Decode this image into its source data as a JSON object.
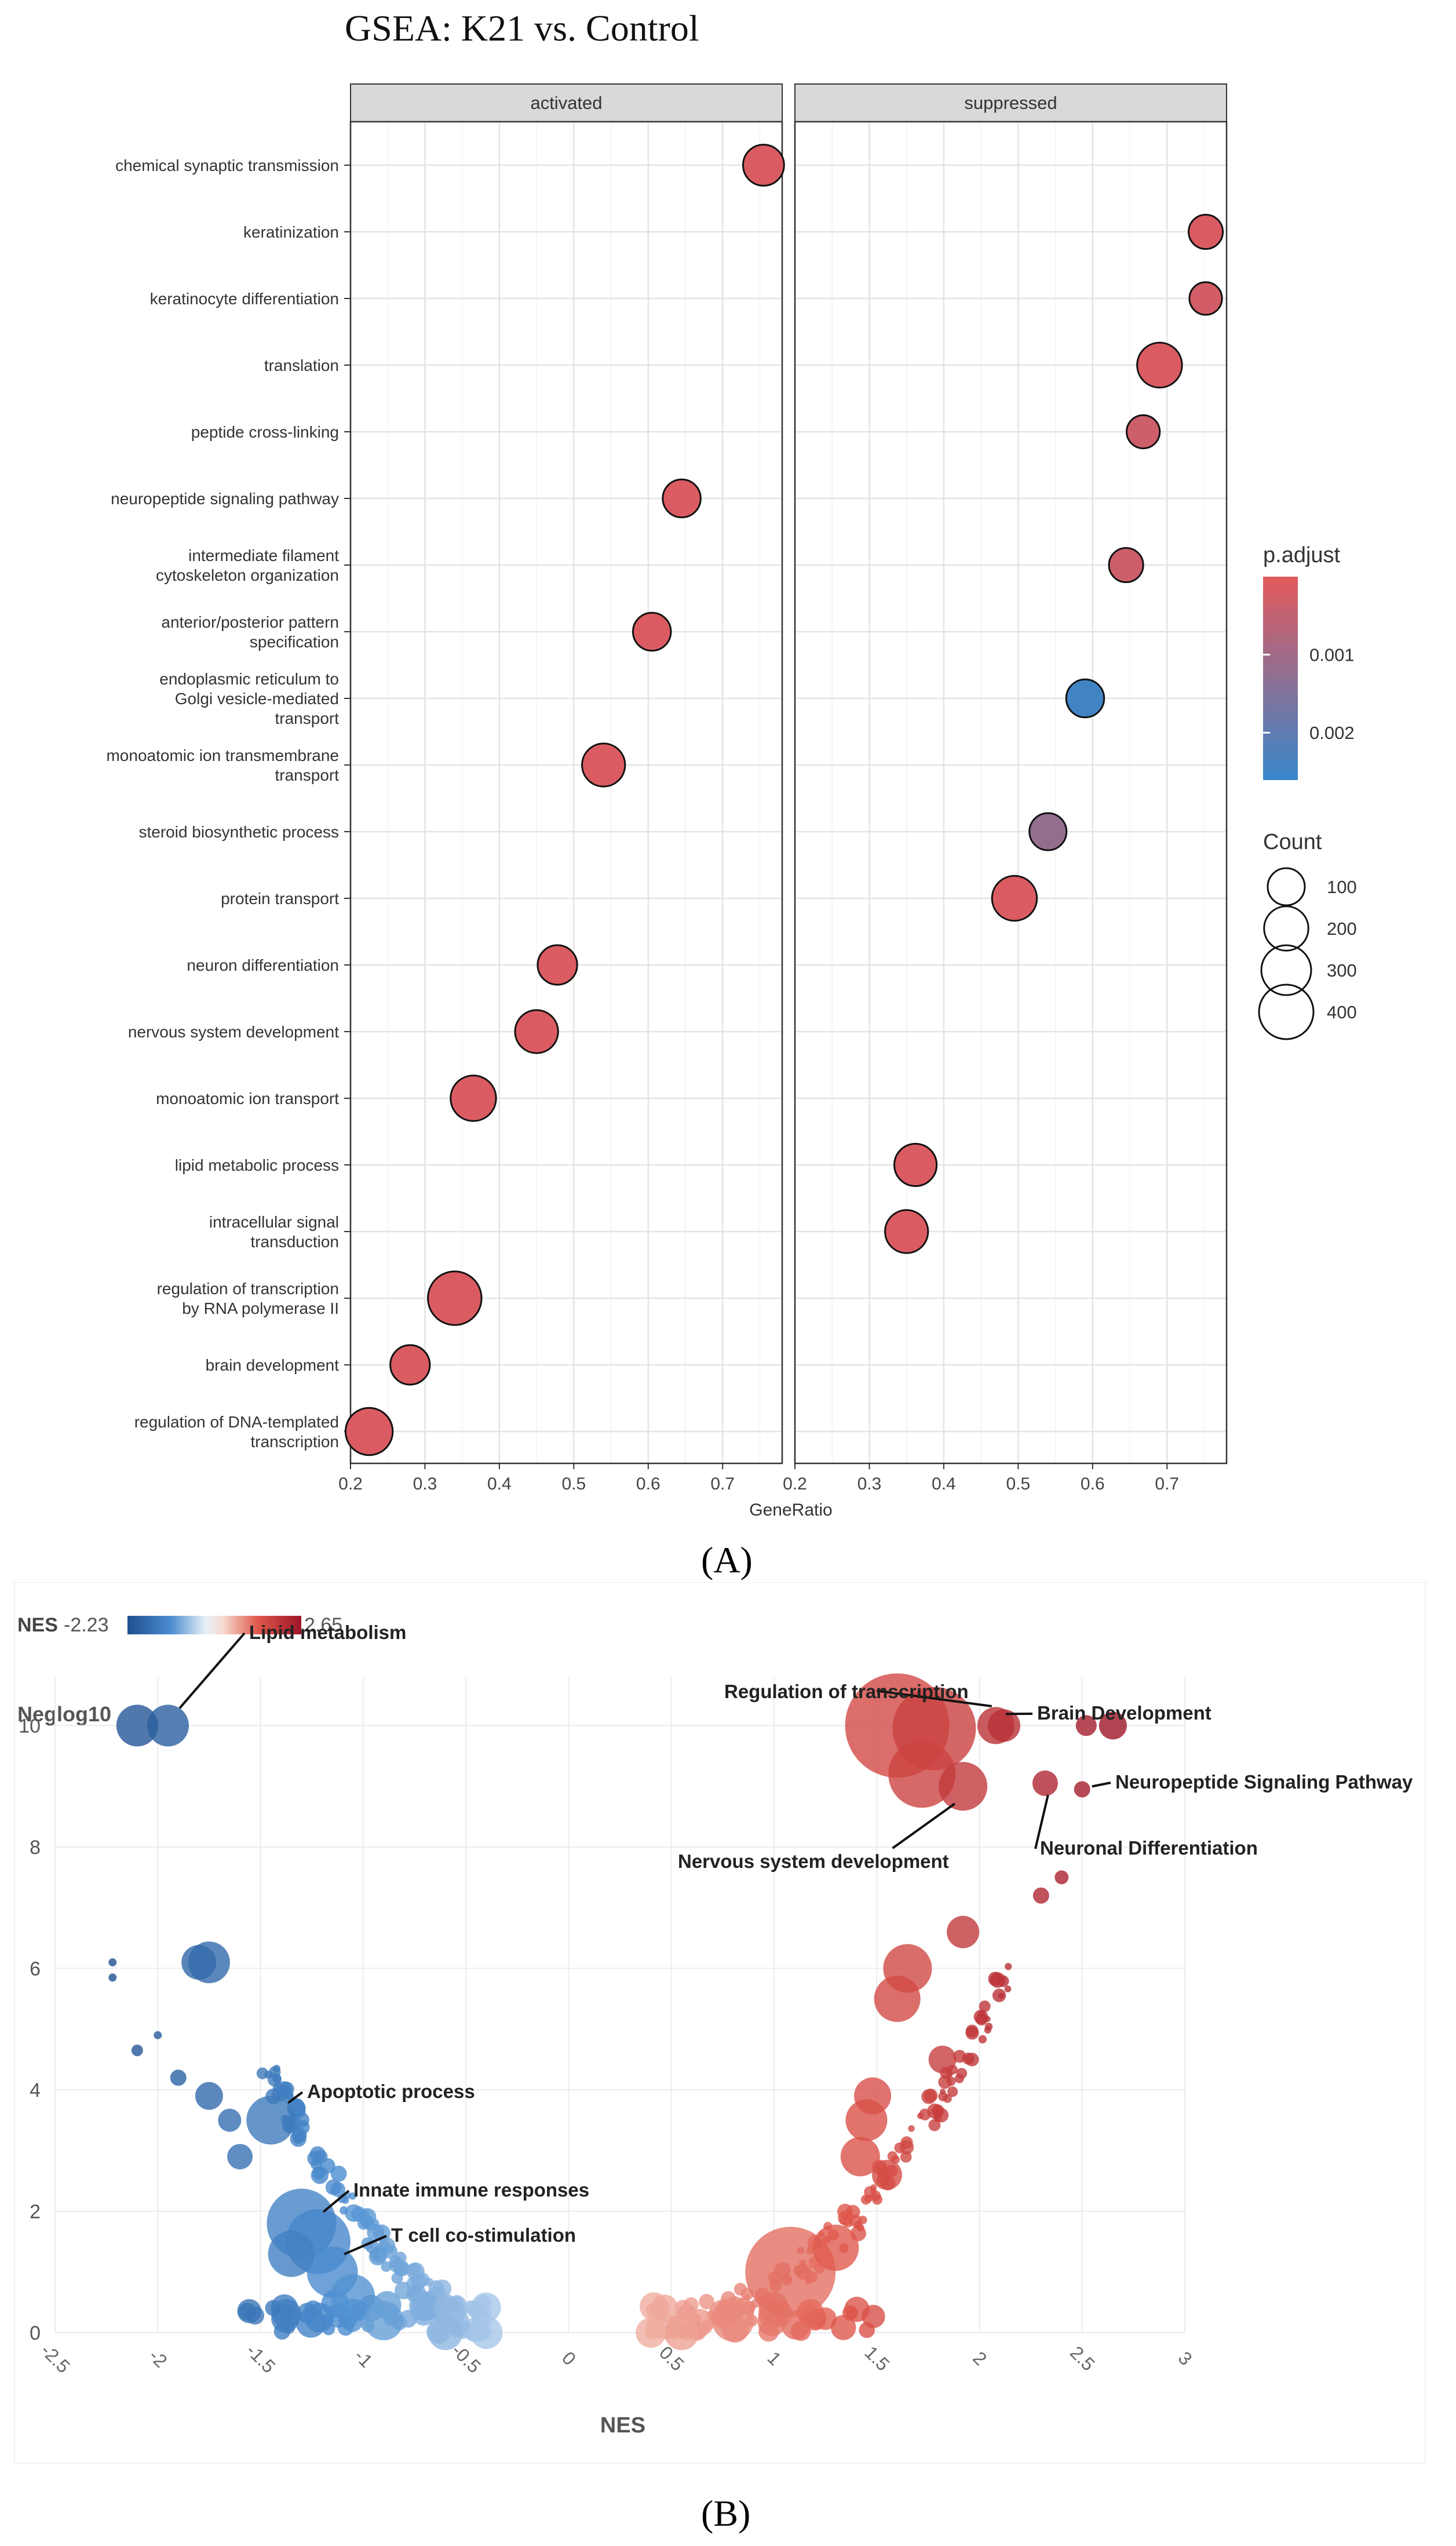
{
  "chart_data": [
    {
      "type": "scatter",
      "title": "GSEA: K21 vs. Control",
      "xlabel": "GeneRatio",
      "xlim": [
        0.2,
        0.78
      ],
      "xticks": [
        "0.2",
        "0.3",
        "0.4",
        "0.5",
        "0.6",
        "0.7"
      ],
      "facets": [
        "activated",
        "suppressed"
      ],
      "categories": [
        "chemical synaptic transmission",
        "keratinization",
        "keratinocyte differentiation",
        "translation",
        "peptide cross-linking",
        "neuropeptide signaling pathway",
        "intermediate filament\ncytoskeleton organization",
        "anterior/posterior pattern\nspecification",
        "endoplasmic reticulum to\nGolgi vesicle-mediated\ntransport",
        "monoatomic ion transmembrane\ntransport",
        "steroid biosynthetic process",
        "protein transport",
        "neuron differentiation",
        "nervous system development",
        "monoatomic ion transport",
        "lipid metabolic process",
        "intracellular signal\ntransduction",
        "regulation of transcription\nby RNA polymerase II",
        "brain development",
        "regulation of DNA-templated\ntranscription"
      ],
      "points": [
        {
          "term": 0,
          "facet": "activated",
          "x": 0.755,
          "count": 150,
          "p_adjust": 0.0001
        },
        {
          "term": 5,
          "facet": "activated",
          "x": 0.645,
          "count": 110,
          "p_adjust": 0.0001
        },
        {
          "term": 7,
          "facet": "activated",
          "x": 0.605,
          "count": 110,
          "p_adjust": 0.0001
        },
        {
          "term": 9,
          "facet": "activated",
          "x": 0.54,
          "count": 180,
          "p_adjust": 0.0001
        },
        {
          "term": 12,
          "facet": "activated",
          "x": 0.478,
          "count": 130,
          "p_adjust": 0.0001
        },
        {
          "term": 13,
          "facet": "activated",
          "x": 0.45,
          "count": 180,
          "p_adjust": 0.0001
        },
        {
          "term": 14,
          "facet": "activated",
          "x": 0.365,
          "count": 220,
          "p_adjust": 0.0001
        },
        {
          "term": 17,
          "facet": "activated",
          "x": 0.34,
          "count": 380,
          "p_adjust": 0.0001
        },
        {
          "term": 18,
          "facet": "activated",
          "x": 0.28,
          "count": 130,
          "p_adjust": 0.0001
        },
        {
          "term": 19,
          "facet": "activated",
          "x": 0.225,
          "count": 250,
          "p_adjust": 0.0001
        },
        {
          "term": 1,
          "facet": "suppressed",
          "x": 0.752,
          "count": 70,
          "p_adjust": 0.0001
        },
        {
          "term": 2,
          "facet": "suppressed",
          "x": 0.752,
          "count": 55,
          "p_adjust": 0.0002
        },
        {
          "term": 3,
          "facet": "suppressed",
          "x": 0.69,
          "count": 210,
          "p_adjust": 0.0001
        },
        {
          "term": 4,
          "facet": "suppressed",
          "x": 0.668,
          "count": 60,
          "p_adjust": 0.0003
        },
        {
          "term": 6,
          "facet": "suppressed",
          "x": 0.645,
          "count": 70,
          "p_adjust": 0.0003
        },
        {
          "term": 8,
          "facet": "suppressed",
          "x": 0.59,
          "count": 110,
          "p_adjust": 0.0025
        },
        {
          "term": 10,
          "facet": "suppressed",
          "x": 0.54,
          "count": 100,
          "p_adjust": 0.0012
        },
        {
          "term": 11,
          "facet": "suppressed",
          "x": 0.495,
          "count": 210,
          "p_adjust": 0.0001
        },
        {
          "term": 15,
          "facet": "suppressed",
          "x": 0.362,
          "count": 170,
          "p_adjust": 0.0001
        },
        {
          "term": 16,
          "facet": "suppressed",
          "x": 0.35,
          "count": 180,
          "p_adjust": 0.0001
        }
      ],
      "legend_color": {
        "title": "p.adjust",
        "ticks": [
          "0.001",
          "0.002"
        ],
        "tick_values": [
          0.001,
          0.002
        ],
        "range": [
          0.0,
          0.0026
        ],
        "low_color": "#e05a5e",
        "high_color": "#3a86c8"
      },
      "legend_size": {
        "title": "Count",
        "labels": [
          "100",
          "200",
          "300",
          "400"
        ],
        "values": [
          100,
          200,
          300,
          400
        ]
      }
    },
    {
      "type": "scatter",
      "xlabel": "NES",
      "ylabel": "Neglog10",
      "xlim": [
        -2.5,
        3
      ],
      "ylim": [
        0,
        10.5
      ],
      "xticks": [
        "-2.5",
        "-2",
        "-1.5",
        "-1",
        "-0.5",
        "0",
        "0.5",
        "1",
        "1.5",
        "2",
        "2.5",
        "3"
      ],
      "yticks": [
        "0",
        "2",
        "4",
        "6",
        "8",
        "10"
      ],
      "colorbar": {
        "label": "NES",
        "min_label": "-2.23",
        "max_label": "2.65",
        "min": -2.23,
        "max": 2.65
      },
      "annotations": [
        {
          "text": "Lipid metabolism",
          "x": -1.95,
          "y": 10
        },
        {
          "text": "Regulation of transcription",
          "x": 1.6,
          "y": 10
        },
        {
          "text": "Brain Development",
          "x": 2.1,
          "y": 10
        },
        {
          "text": "Neuropeptide Signaling Pathway",
          "x": 2.5,
          "y": 9.0
        },
        {
          "text": "Neuronal Differentiation",
          "x": 2.3,
          "y": 9.05
        },
        {
          "text": "Nervous system development",
          "x": 1.9,
          "y": 9.1
        },
        {
          "text": "Apoptotic process",
          "x": -1.45,
          "y": 3.6
        },
        {
          "text": "Innate immune responses",
          "x": -1.25,
          "y": 1.8
        },
        {
          "text": "T cell co-stimulation",
          "x": -1.1,
          "y": 1.2
        }
      ]
    }
  ],
  "panel_labels": {
    "a": "(A)",
    "b": "(B)"
  }
}
